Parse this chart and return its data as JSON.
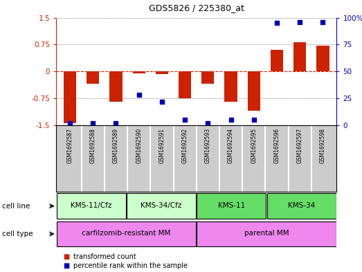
{
  "title": "GDS5826 / 225380_at",
  "samples": [
    "GSM1692587",
    "GSM1692588",
    "GSM1692589",
    "GSM1692590",
    "GSM1692591",
    "GSM1692592",
    "GSM1692593",
    "GSM1692594",
    "GSM1692595",
    "GSM1692596",
    "GSM1692597",
    "GSM1692598"
  ],
  "transformed_counts": [
    -1.45,
    -0.35,
    -0.85,
    -0.05,
    -0.08,
    -0.75,
    -0.35,
    -0.85,
    -1.1,
    0.6,
    0.82,
    0.72
  ],
  "percentile_ranks": [
    2,
    2,
    2,
    28,
    22,
    5,
    2,
    5,
    5,
    95,
    96,
    96
  ],
  "ylim_left": [
    -1.5,
    1.5
  ],
  "ylim_right": [
    0,
    100
  ],
  "yticks_left": [
    -1.5,
    -0.75,
    0,
    0.75,
    1.5
  ],
  "ytick_labels_left": [
    "-1.5",
    "-0.75",
    "0",
    "0.75",
    "1.5"
  ],
  "yticks_right": [
    0,
    25,
    50,
    75,
    100
  ],
  "ytick_labels_right": [
    "0",
    "25",
    "50",
    "75",
    "100%"
  ],
  "cell_lines": [
    {
      "label": "KMS-11/Cfz",
      "start": 0,
      "end": 3,
      "color": "#ccffcc"
    },
    {
      "label": "KMS-34/Cfz",
      "start": 3,
      "end": 6,
      "color": "#ccffcc"
    },
    {
      "label": "KMS-11",
      "start": 6,
      "end": 9,
      "color": "#66dd66"
    },
    {
      "label": "KMS-34",
      "start": 9,
      "end": 12,
      "color": "#66dd66"
    }
  ],
  "cell_types": [
    {
      "label": "carfilzomib-resistant MM",
      "start": 0,
      "end": 6,
      "color": "#ee88ee"
    },
    {
      "label": "parental MM",
      "start": 6,
      "end": 12,
      "color": "#ee88ee"
    }
  ],
  "bar_color": "#cc2200",
  "dot_color": "#0000bb",
  "bar_width": 0.55,
  "dot_size": 18,
  "grid_linestyle": "dotted",
  "grid_color": "#555555",
  "zero_line_color": "#cc2200",
  "bg_color": "#ffffff",
  "plot_bg": "#ffffff",
  "left_axis_color": "#cc2200",
  "right_axis_color": "#0000cc",
  "sample_box_color": "#cccccc",
  "legend_red_label": "transformed count",
  "legend_blue_label": "percentile rank within the sample",
  "cell_line_label": "cell line",
  "cell_type_label": "cell type"
}
